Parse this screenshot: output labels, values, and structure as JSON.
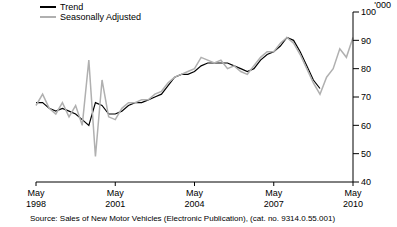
{
  "chart_data": {
    "type": "line",
    "y_label": "'000",
    "annotations": [
      "Source: Sales of New Motor Vehicles (Electronic Publication), (cat. no. 9314.0.55.001)"
    ],
    "categories": [
      "May 1998",
      null,
      null,
      null,
      null,
      null,
      null,
      null,
      null,
      null,
      null,
      null,
      "May 2001",
      null,
      null,
      null,
      null,
      null,
      null,
      null,
      null,
      null,
      null,
      null,
      "May 2004",
      null,
      null,
      null,
      null,
      null,
      null,
      null,
      null,
      null,
      null,
      null,
      "May 2007",
      null,
      null,
      null,
      null,
      null,
      null,
      null,
      null,
      null,
      null,
      null,
      "May 2010"
    ],
    "series": [
      {
        "name": "Trend",
        "color": "#000000",
        "values": [
          68,
          68,
          66,
          65,
          66,
          65,
          64,
          62,
          60,
          68,
          67,
          64,
          64,
          65,
          67,
          68,
          68,
          69,
          70,
          71,
          74,
          77,
          78,
          78,
          79,
          81,
          82,
          82,
          82,
          82,
          81,
          80,
          79,
          80,
          83,
          85,
          86,
          88,
          91,
          90,
          86,
          81,
          76,
          73,
          null,
          null,
          null,
          null,
          null
        ]
      },
      {
        "name": "Seasonally Adjusted",
        "color": "#b0b0b0",
        "values": [
          67,
          71,
          66,
          64,
          68,
          63,
          67,
          60,
          83,
          49,
          76,
          63,
          62,
          66,
          68,
          68,
          69,
          69,
          71,
          72,
          75,
          77,
          78,
          79,
          80,
          84,
          83,
          82,
          83,
          80,
          81,
          79,
          78,
          81,
          84,
          86,
          86,
          89,
          91,
          89,
          85,
          80,
          75,
          71,
          77,
          80,
          87,
          84,
          91
        ]
      }
    ],
    "ylim": [
      40,
      100
    ],
    "yticks": [
      40,
      50,
      60,
      70,
      80,
      90,
      100
    ],
    "grid": false
  }
}
